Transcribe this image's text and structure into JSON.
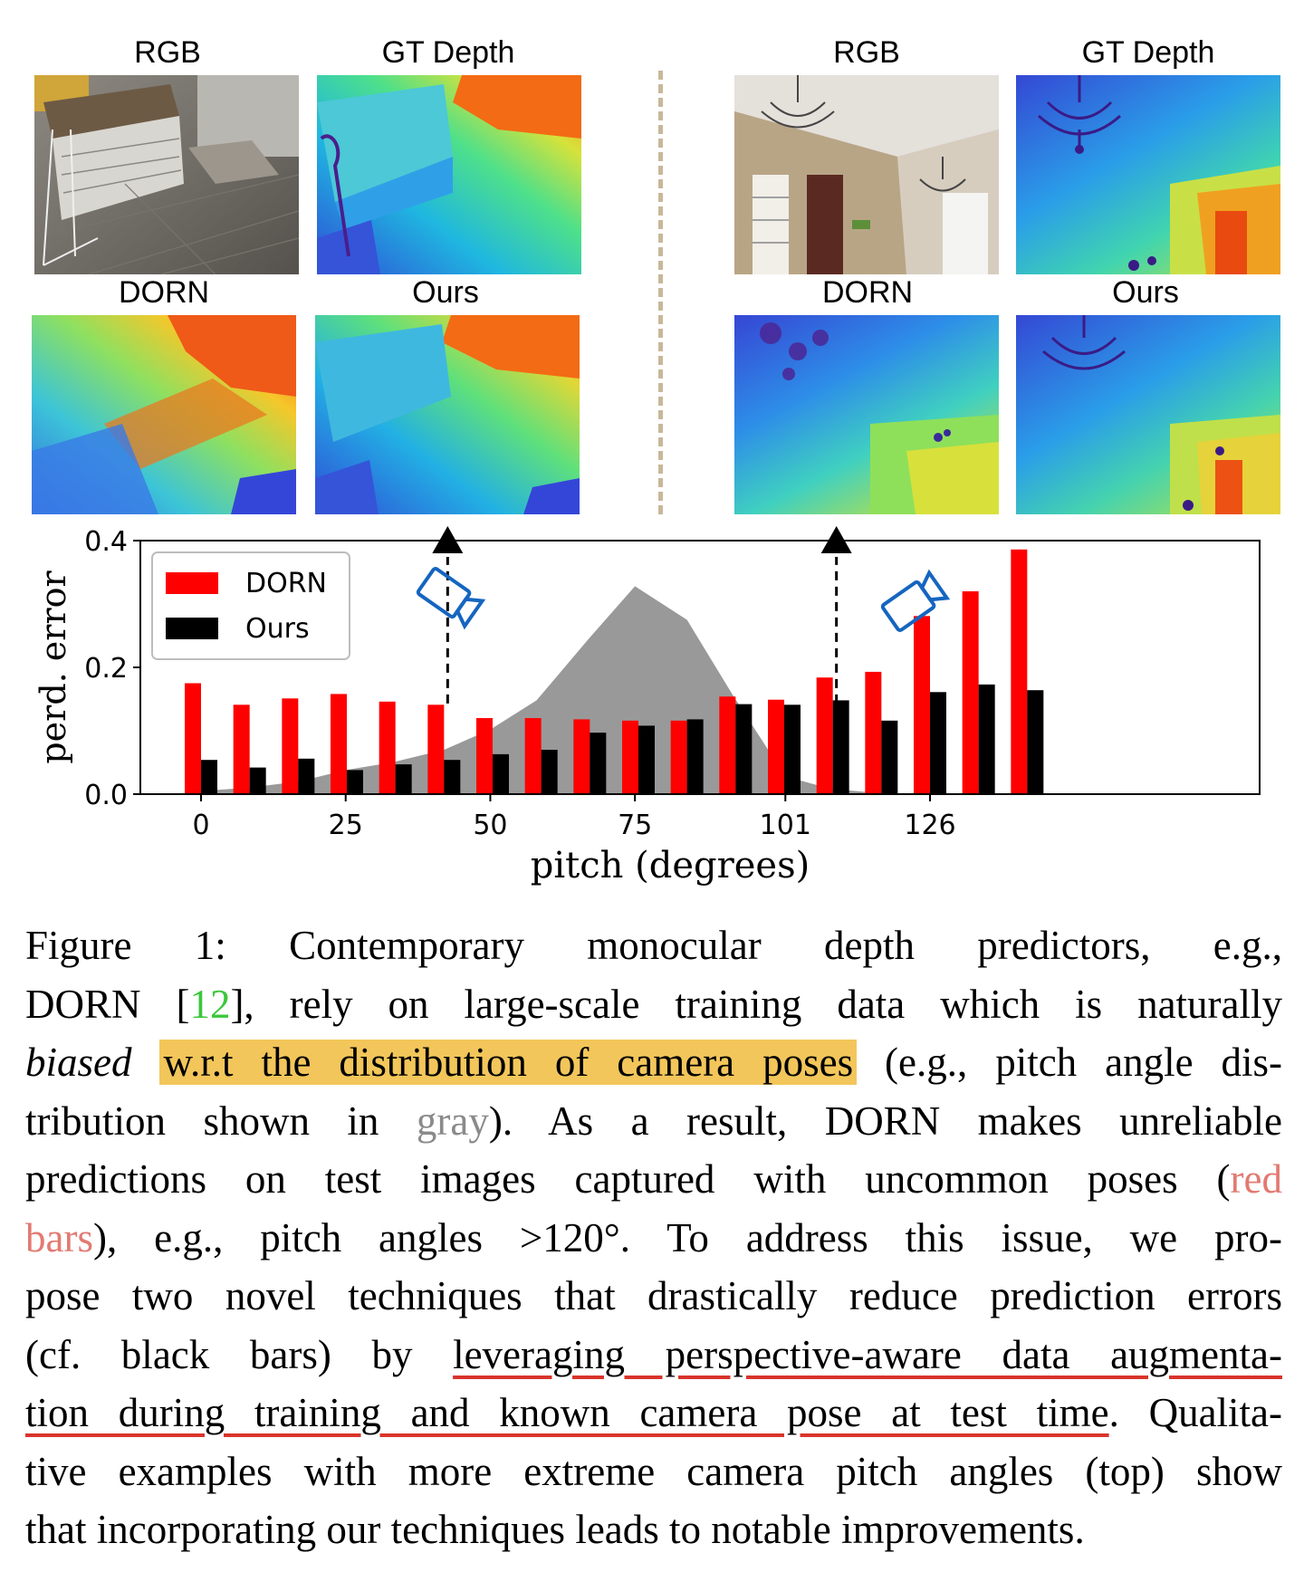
{
  "panels": {
    "left": {
      "rgb_label": "RGB",
      "gt_label": "GT Depth",
      "dorn_label": "DORN",
      "ours_label": "Ours"
    },
    "right": {
      "rgb_label": "RGB",
      "gt_label": "GT Depth",
      "dorn_label": "DORN",
      "ours_label": "Ours"
    }
  },
  "chart_data": {
    "type": "bar",
    "ylabel": "perd. error",
    "xlabel": "pitch (degrees)",
    "ylim": [
      0,
      0.4
    ],
    "yticks": [
      "0.0",
      "0.2",
      "0.4"
    ],
    "xticks": [
      "0",
      "25",
      "50",
      "75",
      "101",
      "126"
    ],
    "legend": {
      "placement": "top-left",
      "entries": [
        "DORN",
        "Ours"
      ]
    },
    "colors": {
      "DORN": "#ff0000",
      "Ours": "#000000",
      "distribution": "#999999",
      "camera": "#1565c0"
    },
    "x": [
      0,
      8.4,
      16.8,
      25.2,
      33.6,
      42,
      50.4,
      58.8,
      67.2,
      75.6,
      84,
      92.4,
      100.8,
      109.2,
      117.6,
      126,
      134.4,
      142.8
    ],
    "series": [
      {
        "name": "DORN",
        "values": [
          0.175,
          0.141,
          0.151,
          0.158,
          0.146,
          0.141,
          0.12,
          0.12,
          0.118,
          0.116,
          0.116,
          0.154,
          0.149,
          0.184,
          0.193,
          0.281,
          0.32,
          0.386
        ]
      },
      {
        "name": "Ours",
        "values": [
          0.054,
          0.042,
          0.056,
          0.038,
          0.047,
          0.054,
          0.063,
          0.07,
          0.097,
          0.108,
          0.118,
          0.142,
          0.141,
          0.148,
          0.116,
          0.161,
          0.173,
          0.164
        ]
      }
    ],
    "distribution": {
      "x": [
        0,
        8,
        17,
        25,
        33,
        42,
        50,
        58,
        67,
        75,
        84,
        92,
        101,
        109,
        117,
        126
      ],
      "y": [
        0.005,
        0.01,
        0.02,
        0.038,
        0.05,
        0.07,
        0.102,
        0.148,
        0.245,
        0.328,
        0.275,
        0.155,
        0.028,
        0.008,
        0.002,
        0.0
      ]
    },
    "arrows_at_pitch": [
      42,
      109.2
    ]
  },
  "caption": {
    "lines": [
      [
        "Figure 1:  Contemporary monocular depth predictors, e.g.,"
      ],
      [
        "DORN [",
        "12",
        "], rely on large-scale training data which is naturally"
      ],
      [
        "biased",
        "w.r.t the distribution of camera poses",
        "(e.g., pitch angle dis-"
      ],
      [
        "tribution shown in ",
        "gray",
        ").  As a result, DORN makes unreliable"
      ],
      [
        "predictions on test images captured with uncommon poses (",
        "red"
      ],
      [
        "bars",
        "), e.g., pitch angles >120°.  To address this issue, we pro-"
      ],
      [
        "pose two novel techniques that drastically reduce prediction errors"
      ],
      [
        "(cf.  black bars) by ",
        "leveraging perspective-aware data augmenta-"
      ],
      [
        "tion during training and known camera pose at test time",
        ". Qualita-"
      ],
      [
        "tive examples with more extreme camera pitch angles (top) show"
      ],
      [
        "that incorporating our techniques leads to notable improvements."
      ]
    ]
  }
}
